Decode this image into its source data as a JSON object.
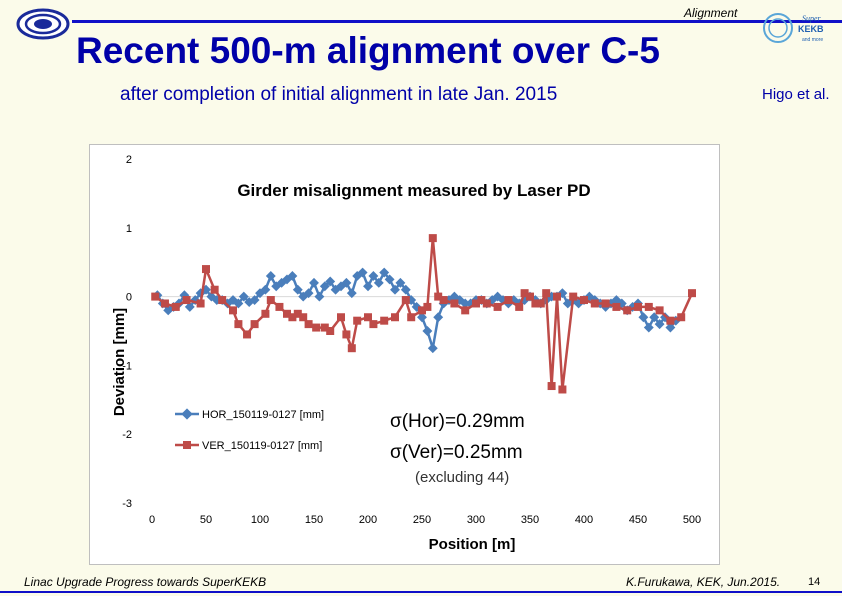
{
  "header": {
    "tag": "Alignment",
    "title": "Recent 500-m alignment over C-5",
    "subtitle": "after completion of initial alignment in late Jan. 2015",
    "author": "Higo et al.",
    "right_logo_text": [
      "Super",
      "KEKB",
      "and more"
    ]
  },
  "footer": {
    "left": "Linac Upgrade Progress towards SuperKEKB",
    "right": "K.Furukawa, KEK, Jun.2015.",
    "page": "14"
  },
  "colors": {
    "title_blue": "#0000a8",
    "rule_blue": "#1010c8",
    "hor_series": "#4a7ebb",
    "ver_series": "#be4b48"
  },
  "chart_data": {
    "type": "line",
    "title": "Girder misalignment measured by Laser PD",
    "xlabel": "Position [m]",
    "ylabel": "Deviation [mm]",
    "xlim": [
      0,
      500
    ],
    "ylim": [
      -3,
      2
    ],
    "xticks": [
      "0",
      "50",
      "100",
      "150",
      "200",
      "250",
      "300",
      "350",
      "400",
      "450",
      "500"
    ],
    "yticks": [
      "2",
      "1",
      "0",
      "-1",
      "-2",
      "-3"
    ],
    "legend": "bottom-left",
    "annotation": [
      "σ(Hor)=0.29mm",
      "σ(Ver)=0.25mm",
      "(excluding 44)"
    ],
    "series": [
      {
        "name": "HOR_150119-0127 [mm]",
        "marker": "diamond",
        "x": [
          5,
          10,
          15,
          20,
          25,
          30,
          35,
          40,
          45,
          50,
          55,
          60,
          65,
          70,
          75,
          80,
          85,
          90,
          95,
          100,
          105,
          110,
          115,
          120,
          125,
          130,
          135,
          140,
          145,
          150,
          155,
          160,
          165,
          170,
          175,
          180,
          185,
          190,
          195,
          200,
          205,
          210,
          215,
          220,
          225,
          230,
          235,
          240,
          245,
          250,
          255,
          260,
          265,
          270,
          275,
          280,
          285,
          290,
          295,
          300,
          305,
          310,
          315,
          320,
          325,
          330,
          335,
          340,
          345,
          350,
          355,
          360,
          365,
          370,
          375,
          380,
          385,
          390,
          395,
          400,
          405,
          410,
          415,
          420,
          425,
          430,
          435,
          440,
          445,
          450,
          455,
          460,
          465,
          470,
          475,
          480,
          485
        ],
        "values": [
          0.02,
          -0.1,
          -0.2,
          -0.15,
          -0.1,
          0.02,
          -0.15,
          -0.05,
          0.05,
          0.1,
          0.0,
          -0.05,
          -0.05,
          -0.1,
          -0.05,
          -0.1,
          0.0,
          -0.08,
          -0.05,
          0.05,
          0.1,
          0.3,
          0.15,
          0.2,
          0.25,
          0.3,
          0.1,
          0.0,
          0.05,
          0.2,
          0.0,
          0.15,
          0.22,
          0.1,
          0.15,
          0.2,
          0.05,
          0.3,
          0.35,
          0.15,
          0.3,
          0.2,
          0.35,
          0.25,
          0.1,
          0.2,
          0.1,
          -0.05,
          -0.15,
          -0.3,
          -0.5,
          -0.75,
          -0.3,
          -0.1,
          -0.05,
          0.0,
          -0.05,
          -0.1,
          -0.1,
          -0.05,
          -0.05,
          -0.1,
          -0.05,
          0.0,
          -0.05,
          -0.1,
          -0.05,
          -0.1,
          -0.05,
          0.0,
          -0.05,
          -0.1,
          -0.05,
          0.0,
          0.0,
          0.05,
          -0.1,
          -0.05,
          -0.1,
          -0.05,
          0.0,
          -0.05,
          -0.1,
          -0.15,
          -0.1,
          -0.05,
          -0.1,
          -0.2,
          -0.15,
          -0.1,
          -0.3,
          -0.45,
          -0.3,
          -0.4,
          -0.3,
          -0.45,
          -0.35
        ]
      },
      {
        "name": "VER_150119-0127 [mm]",
        "marker": "square",
        "x": [
          3,
          12,
          22,
          32,
          45,
          50,
          58,
          65,
          75,
          80,
          88,
          95,
          105,
          110,
          118,
          125,
          130,
          135,
          140,
          145,
          152,
          160,
          165,
          175,
          180,
          185,
          190,
          200,
          205,
          215,
          225,
          235,
          240,
          250,
          255,
          260,
          265,
          270,
          280,
          290,
          300,
          305,
          310,
          320,
          330,
          340,
          345,
          350,
          355,
          360,
          365,
          370,
          375,
          380,
          390,
          400,
          410,
          420,
          430,
          440,
          450,
          460,
          470,
          480,
          490,
          500
        ],
        "values": [
          0.0,
          -0.1,
          -0.15,
          -0.05,
          -0.1,
          0.4,
          0.1,
          -0.05,
          -0.2,
          -0.4,
          -0.55,
          -0.4,
          -0.25,
          -0.05,
          -0.15,
          -0.25,
          -0.3,
          -0.25,
          -0.3,
          -0.4,
          -0.45,
          -0.45,
          -0.5,
          -0.3,
          -0.55,
          -0.75,
          -0.35,
          -0.3,
          -0.4,
          -0.35,
          -0.3,
          -0.05,
          -0.3,
          -0.2,
          -0.15,
          0.85,
          0.0,
          -0.05,
          -0.1,
          -0.2,
          -0.1,
          -0.05,
          -0.1,
          -0.15,
          -0.05,
          -0.15,
          0.05,
          0.0,
          -0.1,
          -0.1,
          0.05,
          -1.3,
          0.0,
          -1.35,
          0.0,
          -0.05,
          -0.1,
          -0.1,
          -0.15,
          -0.2,
          -0.15,
          -0.15,
          -0.2,
          -0.35,
          -0.3,
          0.05
        ]
      }
    ]
  }
}
